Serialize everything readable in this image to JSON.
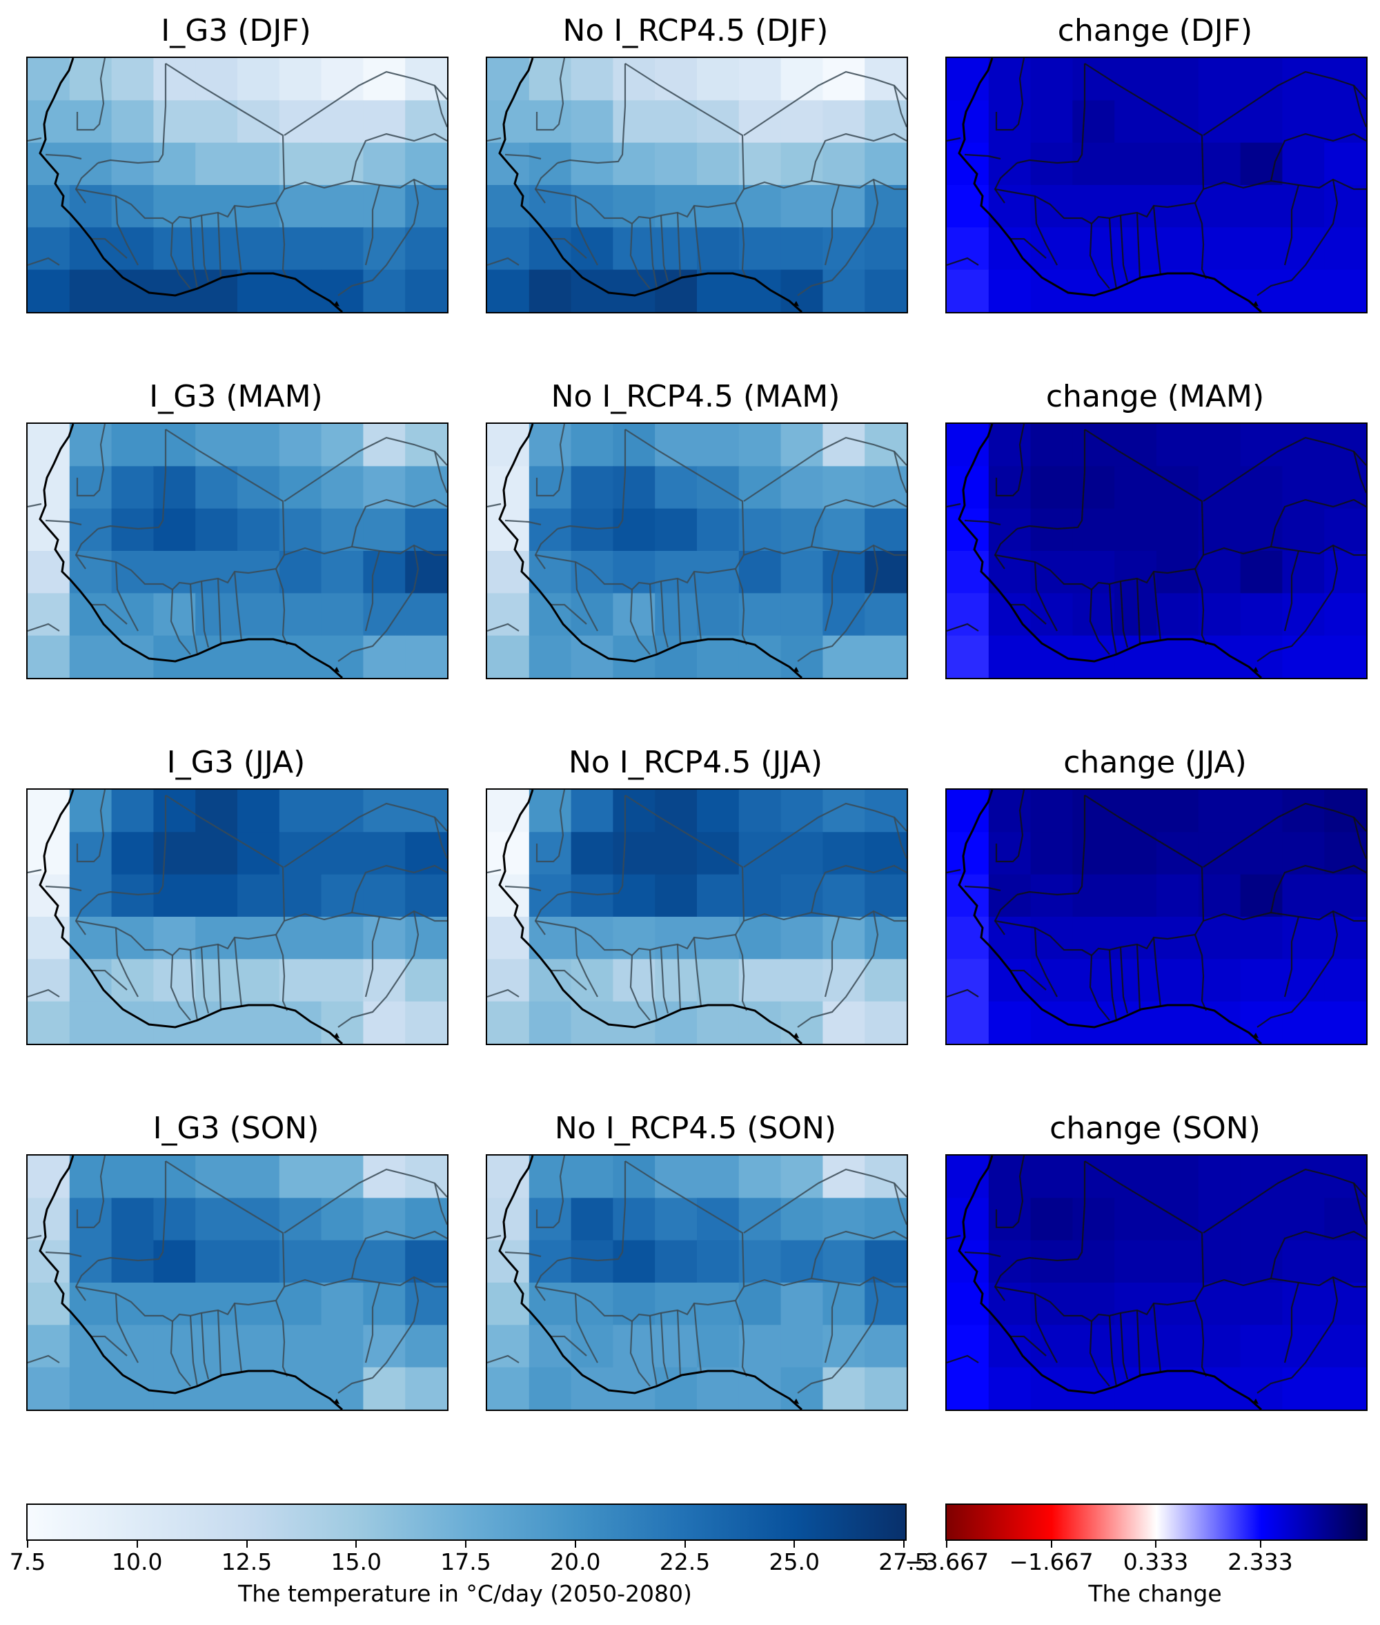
{
  "panel_titles": [
    [
      "I_G3 (DJF)",
      "No I_RCP4.5 (DJF)",
      "change (DJF)"
    ],
    [
      "I_G3 (MAM)",
      "No I_RCP4.5 (MAM)",
      "change (MAM)"
    ],
    [
      "I_G3 (JJA)",
      "No I_RCP4.5 (JJA)",
      "change (JJA)"
    ],
    [
      "I_G3 (SON)",
      "No I_RCP4.5 (SON)",
      "change (SON)"
    ]
  ],
  "temperature_colorbar": {
    "label": "The temperature in °C/day (2050-2080)",
    "ticks": [
      "7.5",
      "10.0",
      "12.5",
      "15.0",
      "17.5",
      "20.0",
      "22.5",
      "25.0",
      "27.5"
    ],
    "range": [
      7.5,
      27.5
    ],
    "colors": [
      "#f7fbff",
      "#deebf7",
      "#c6dbef",
      "#9ecae1",
      "#6baed6",
      "#4292c6",
      "#2171b5",
      "#08519c",
      "#08306b"
    ]
  },
  "change_colorbar": {
    "label": "The change",
    "ticks": [
      "−3.667",
      "−1.667",
      "0.333",
      "2.333"
    ],
    "range": [
      -3.667,
      4.333
    ],
    "colors": [
      "#7f0000",
      "#ff0000",
      "#ffffff",
      "#0000ff",
      "#00004d"
    ]
  },
  "map_grid": {
    "columns": 10,
    "rows": 6,
    "temperature": {
      "DJF": [
        [
          16,
          15,
          14,
          12,
          12,
          11,
          10,
          9,
          8,
          10
        ],
        [
          17,
          17,
          16,
          14,
          14,
          13,
          12,
          12,
          12,
          14
        ],
        [
          19,
          19,
          18,
          17,
          16,
          16,
          15,
          15,
          16,
          17
        ],
        [
          21,
          22,
          21,
          20,
          20,
          20,
          19,
          19,
          19,
          21
        ],
        [
          23,
          24,
          24,
          23,
          23,
          23,
          23,
          23,
          22,
          23
        ],
        [
          25,
          26,
          26,
          26,
          26,
          25,
          25,
          25,
          23,
          24
        ]
      ],
      "MAM": [
        [
          10,
          19,
          20,
          20,
          19,
          19,
          18,
          17,
          13,
          15
        ],
        [
          10,
          21,
          23,
          24,
          22,
          21,
          20,
          19,
          18,
          19
        ],
        [
          10,
          22,
          24,
          25,
          24,
          23,
          22,
          21,
          21,
          23
        ],
        [
          12,
          21,
          22,
          22,
          22,
          22,
          23,
          22,
          24,
          26
        ],
        [
          14,
          20,
          20,
          19,
          21,
          21,
          21,
          21,
          22,
          22
        ],
        [
          16,
          19,
          19,
          20,
          20,
          20,
          20,
          20,
          18,
          18
        ]
      ],
      "JJA": [
        [
          8,
          20,
          23,
          25,
          26,
          25,
          23,
          23,
          22,
          22
        ],
        [
          8,
          22,
          25,
          26,
          26,
          25,
          24,
          24,
          24,
          25
        ],
        [
          9,
          22,
          24,
          25,
          25,
          24,
          24,
          23,
          23,
          24
        ],
        [
          11,
          19,
          19,
          18,
          19,
          19,
          19,
          19,
          18,
          19
        ],
        [
          13,
          16,
          15,
          14,
          15,
          15,
          14,
          14,
          13,
          15
        ],
        [
          15,
          16,
          16,
          16,
          16,
          16,
          16,
          15,
          12,
          13
        ]
      ],
      "SON": [
        [
          12,
          20,
          20,
          20,
          19,
          19,
          17,
          17,
          12,
          13
        ],
        [
          13,
          22,
          24,
          23,
          22,
          22,
          21,
          20,
          19,
          20
        ],
        [
          14,
          22,
          24,
          25,
          23,
          23,
          22,
          22,
          22,
          24
        ],
        [
          15,
          20,
          20,
          20,
          20,
          20,
          20,
          19,
          20,
          22
        ],
        [
          17,
          19,
          19,
          19,
          19,
          19,
          19,
          19,
          18,
          19
        ],
        [
          18,
          19,
          19,
          19,
          19,
          19,
          19,
          19,
          15,
          16
        ]
      ]
    },
    "change": {
      "DJF": [
        [
          2.6,
          3.0,
          3.1,
          3.2,
          3.2,
          3.2,
          3.1,
          3.1,
          3.0,
          3.0
        ],
        [
          2.5,
          3.0,
          3.1,
          3.4,
          3.2,
          3.2,
          3.1,
          3.1,
          3.0,
          3.0
        ],
        [
          2.4,
          3.0,
          3.2,
          3.3,
          3.3,
          3.3,
          3.3,
          3.6,
          3.0,
          2.8
        ],
        [
          2.3,
          2.9,
          3.0,
          3.0,
          3.0,
          3.0,
          3.0,
          3.0,
          3.0,
          2.9
        ],
        [
          2.2,
          2.7,
          2.8,
          2.8,
          2.8,
          2.8,
          2.8,
          2.8,
          2.8,
          2.8
        ],
        [
          2.1,
          2.6,
          2.7,
          2.7,
          2.7,
          2.7,
          2.7,
          2.7,
          2.7,
          2.7
        ]
      ],
      "MAM": [
        [
          2.5,
          3.3,
          3.5,
          3.5,
          3.5,
          3.4,
          3.4,
          3.3,
          3.3,
          3.3
        ],
        [
          2.4,
          3.4,
          3.6,
          3.6,
          3.5,
          3.5,
          3.4,
          3.4,
          3.3,
          3.3
        ],
        [
          2.3,
          3.3,
          3.5,
          3.5,
          3.5,
          3.5,
          3.4,
          3.4,
          3.3,
          3.2
        ],
        [
          2.2,
          3.2,
          3.3,
          3.3,
          3.4,
          3.5,
          3.3,
          3.6,
          3.2,
          3.0
        ],
        [
          2.1,
          3.0,
          3.1,
          3.2,
          3.4,
          3.2,
          3.1,
          3.0,
          2.9,
          2.8
        ],
        [
          2.0,
          2.8,
          2.8,
          2.8,
          2.8,
          2.8,
          2.8,
          2.8,
          2.7,
          2.7
        ]
      ],
      "JJA": [
        [
          2.4,
          3.4,
          3.5,
          3.6,
          3.6,
          3.6,
          3.5,
          3.5,
          3.6,
          3.7
        ],
        [
          2.3,
          3.3,
          3.5,
          3.6,
          3.6,
          3.5,
          3.5,
          3.5,
          3.5,
          3.6
        ],
        [
          2.2,
          3.4,
          3.3,
          3.4,
          3.4,
          3.3,
          3.4,
          3.7,
          3.3,
          3.3
        ],
        [
          2.1,
          3.0,
          3.1,
          3.1,
          3.1,
          3.1,
          3.1,
          3.1,
          3.0,
          3.0
        ],
        [
          2.0,
          2.8,
          2.9,
          2.9,
          2.9,
          2.9,
          2.9,
          2.8,
          2.8,
          2.8
        ],
        [
          2.0,
          2.6,
          2.7,
          2.7,
          2.7,
          2.7,
          2.7,
          2.6,
          2.6,
          2.6
        ]
      ],
      "SON": [
        [
          2.7,
          3.4,
          3.4,
          3.4,
          3.4,
          3.4,
          3.3,
          3.3,
          3.3,
          3.3
        ],
        [
          2.6,
          3.4,
          3.6,
          3.5,
          3.4,
          3.4,
          3.3,
          3.3,
          3.3,
          3.4
        ],
        [
          2.5,
          3.3,
          3.4,
          3.4,
          3.3,
          3.3,
          3.3,
          3.3,
          3.2,
          3.2
        ],
        [
          2.4,
          3.1,
          3.2,
          3.2,
          3.1,
          3.1,
          3.1,
          3.1,
          3.0,
          3.0
        ],
        [
          2.3,
          2.9,
          3.0,
          3.0,
          3.0,
          3.0,
          3.0,
          2.9,
          2.9,
          2.9
        ],
        [
          2.3,
          2.7,
          2.8,
          2.8,
          2.8,
          2.8,
          2.8,
          2.8,
          2.7,
          2.7
        ]
      ]
    }
  }
}
